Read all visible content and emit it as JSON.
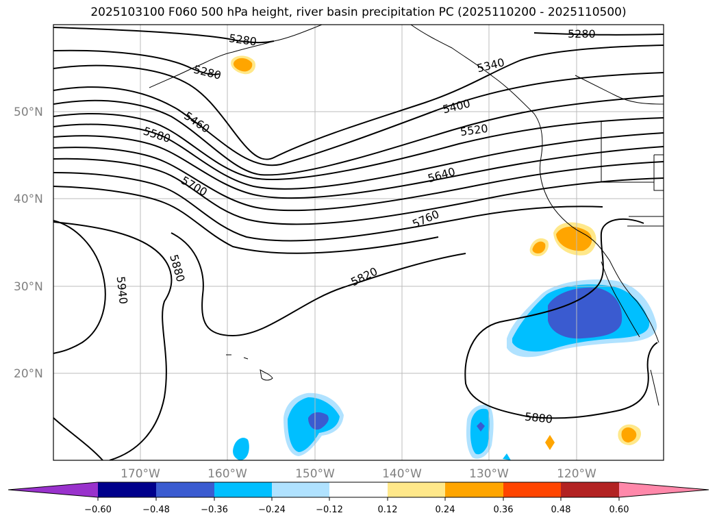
{
  "title": "2025103100 F060 500 hPa height, river basin precipitation PC (2025110200 - 2025110500)",
  "lat_labels": [
    "50°N",
    "40°N",
    "30°N",
    "20°N"
  ],
  "lon_labels": [
    "170°W",
    "160°W",
    "150°W",
    "140°W",
    "130°W",
    "120°W"
  ],
  "contour_labels": [
    "5280",
    "5280",
    "5280",
    "5340",
    "5400",
    "5460",
    "5520",
    "5580",
    "5640",
    "5700",
    "5760",
    "5820",
    "5880",
    "5880",
    "5940"
  ],
  "colorbar": {
    "ticks": [
      "−0.60",
      "−0.48",
      "−0.36",
      "−0.24",
      "−0.12",
      "0.12",
      "0.24",
      "0.36",
      "0.48",
      "0.60"
    ],
    "colors": [
      "#9932cc",
      "#00008b",
      "#3a5bd0",
      "#00bfff",
      "#b0e2ff",
      "#ffffff",
      "#ffe88a",
      "#ffa500",
      "#ff4500",
      "#b22222",
      "#ff88aa"
    ]
  }
}
